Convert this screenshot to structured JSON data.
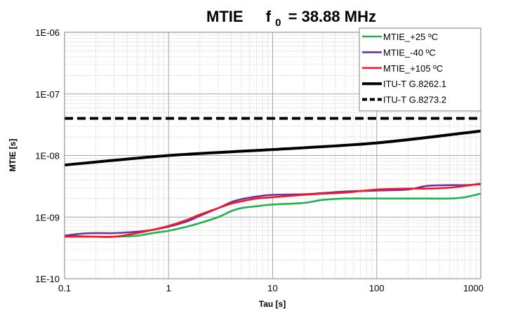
{
  "chart_data": {
    "type": "line",
    "title_parts": [
      "MTIE",
      "f",
      "0",
      "= 38.88 MHz"
    ],
    "xlabel": "Tau [s]",
    "ylabel": "MTIE [s]",
    "x_scale": "log",
    "y_scale": "log",
    "xlim": [
      0.1,
      1000
    ],
    "ylim": [
      1e-10,
      1e-06
    ],
    "x_ticks": [
      {
        "value": 0.1,
        "label": "0.1"
      },
      {
        "value": 1,
        "label": "1"
      },
      {
        "value": 10,
        "label": "10"
      },
      {
        "value": 100,
        "label": "100"
      },
      {
        "value": 1000,
        "label": "1000"
      }
    ],
    "y_ticks": [
      {
        "value": 1e-10,
        "label": "1E-10"
      },
      {
        "value": 1e-09,
        "label": "1E-09"
      },
      {
        "value": 1e-08,
        "label": "1E-08"
      },
      {
        "value": 1e-07,
        "label": "1E-07"
      },
      {
        "value": 1e-06,
        "label": "1E-06"
      }
    ],
    "grid": true,
    "legend_position": "top-right",
    "series": [
      {
        "name": "MTIE_+25 ºC",
        "color": "#1fb24a",
        "style": "solid",
        "x": [
          0.1,
          0.2,
          0.3,
          0.5,
          0.7,
          1,
          1.5,
          2,
          3,
          4,
          5,
          7,
          10,
          20,
          30,
          50,
          100,
          200,
          300,
          500,
          700,
          1000
        ],
        "y": [
          5e-10,
          4.8e-10,
          4.8e-10,
          5e-10,
          5.5e-10,
          6e-10,
          7e-10,
          8e-10,
          1e-09,
          1.25e-09,
          1.4e-09,
          1.5e-09,
          1.6e-09,
          1.7e-09,
          1.9e-09,
          2e-09,
          2e-09,
          2e-09,
          2e-09,
          2e-09,
          2.1e-09,
          2.4e-09
        ]
      },
      {
        "name": "MTIE_-40 ºC",
        "color": "#7030a0",
        "style": "solid",
        "x": [
          0.1,
          0.15,
          0.2,
          0.3,
          0.5,
          0.7,
          1,
          1.5,
          2,
          3,
          4,
          5,
          7,
          10,
          20,
          30,
          50,
          100,
          200,
          300,
          500,
          700,
          1000
        ],
        "y": [
          5e-10,
          5.4e-10,
          5.5e-10,
          5.5e-10,
          5.8e-10,
          6.2e-10,
          7e-10,
          8.5e-10,
          1.05e-09,
          1.4e-09,
          1.75e-09,
          1.95e-09,
          2.15e-09,
          2.3e-09,
          2.35e-09,
          2.45e-09,
          2.6e-09,
          2.7e-09,
          2.8e-09,
          3.2e-09,
          3.3e-09,
          3.3e-09,
          3.4e-09
        ]
      },
      {
        "name": "MTIE_+105 ºC",
        "color": "#ee1c24",
        "style": "solid",
        "x": [
          0.1,
          0.2,
          0.3,
          0.5,
          0.7,
          1,
          1.5,
          2,
          3,
          4,
          5,
          7,
          10,
          20,
          30,
          50,
          100,
          200,
          300,
          500,
          700,
          1000
        ],
        "y": [
          4.8e-10,
          4.8e-10,
          4.8e-10,
          5.5e-10,
          6.2e-10,
          7.2e-10,
          9e-10,
          1.1e-09,
          1.4e-09,
          1.65e-09,
          1.8e-09,
          2e-09,
          2.1e-09,
          2.3e-09,
          2.4e-09,
          2.5e-09,
          2.8e-09,
          2.9e-09,
          2.9e-09,
          3e-09,
          3.2e-09,
          3.5e-09
        ]
      },
      {
        "name": "ITU-T G.8262.1",
        "color": "#000000",
        "style": "solid",
        "x": [
          0.1,
          1,
          10,
          100,
          1000
        ],
        "y": [
          7e-09,
          1e-08,
          1.25e-08,
          1.6e-08,
          2.5e-08
        ]
      },
      {
        "name": "ITU-T G.8273.2",
        "color": "#000000",
        "style": "dashed",
        "x": [
          0.1,
          1000
        ],
        "y": [
          4e-08,
          4e-08
        ]
      }
    ]
  }
}
